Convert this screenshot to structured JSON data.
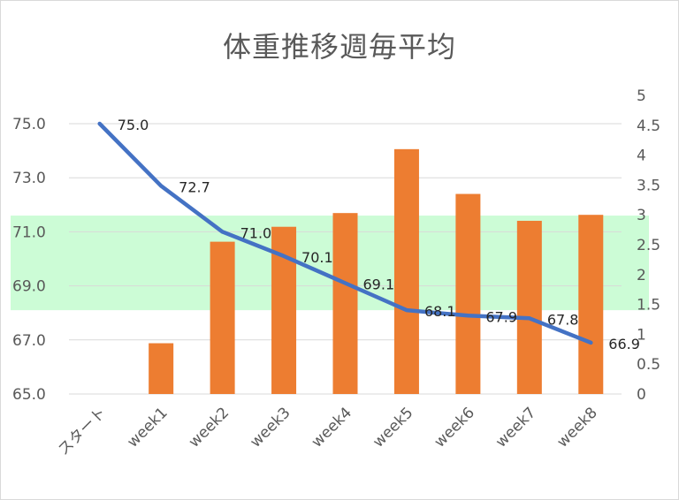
{
  "chart_data": {
    "type": "bar+line",
    "title": "体重推移週毎平均",
    "categories": [
      "スタート",
      "week1",
      "week2",
      "week3",
      "week4",
      "week5",
      "week6",
      "week7",
      "week8"
    ],
    "line_series": {
      "axis": "left",
      "color": "#4472c4",
      "values": [
        75.0,
        72.7,
        71.0,
        70.1,
        69.1,
        68.1,
        67.9,
        67.8,
        66.9
      ],
      "labels": [
        "75.0",
        "72.7",
        "71.0",
        "70.1",
        "69.1",
        "68.1",
        "67.9",
        "67.8",
        "66.9"
      ]
    },
    "bar_series": {
      "axis": "right",
      "color": "#ed7d31",
      "values": [
        null,
        0.85,
        2.55,
        2.8,
        3.03,
        4.1,
        3.35,
        2.9,
        3.0
      ]
    },
    "left_axis": {
      "ylim": [
        65,
        75
      ],
      "ticks": [
        "75.0",
        "73.0",
        "71.0",
        "69.0",
        "67.0",
        "65.0"
      ]
    },
    "right_axis": {
      "ylim": [
        0,
        5
      ],
      "ticks": [
        "5",
        "4.5",
        "4",
        "3.5",
        "3",
        "2.5",
        "2",
        "1.5",
        "1",
        "0.5",
        "0"
      ]
    },
    "target_band": {
      "from": 68.1,
      "to": 71.6,
      "color": "#ccfcd6"
    },
    "grid": true,
    "legend": "none"
  }
}
